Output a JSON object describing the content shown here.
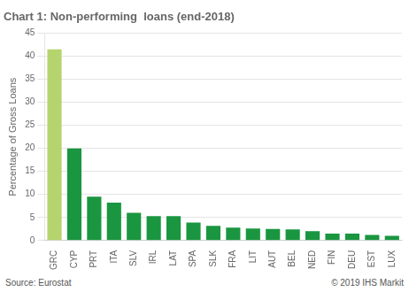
{
  "chart_data": {
    "type": "bar",
    "title": "Chart 1: Non-performing  loans (end-2018)",
    "ylabel": "Percentage of Gross Loans",
    "categories": [
      "GRC",
      "CYP",
      "PRT",
      "ITA",
      "SLV",
      "IRL",
      "LAT",
      "SPA",
      "SLK",
      "FRA",
      "LIT",
      "AUT",
      "BEL",
      "NED",
      "FIN",
      "DEU",
      "EST",
      "LUX"
    ],
    "values": [
      41.5,
      20.0,
      9.5,
      8.2,
      6.0,
      5.3,
      5.3,
      3.9,
      3.2,
      2.8,
      2.6,
      2.5,
      2.4,
      2.0,
      1.5,
      1.5,
      1.2,
      1.0
    ],
    "colors": [
      "#b5d46e",
      "#1a9640",
      "#1a9640",
      "#1a9640",
      "#1a9640",
      "#1a9640",
      "#1a9640",
      "#1a9640",
      "#1a9640",
      "#1a9640",
      "#1a9640",
      "#1a9640",
      "#1a9640",
      "#1a9640",
      "#1a9640",
      "#1a9640",
      "#1a9640",
      "#1a9640"
    ],
    "ylim": [
      0,
      45
    ],
    "yticks": [
      0,
      5,
      10,
      15,
      20,
      25,
      30,
      35,
      40,
      45
    ],
    "grid": true,
    "annotations": [
      "Source:  Eurostat",
      "© 2019  IHS Markit"
    ]
  }
}
